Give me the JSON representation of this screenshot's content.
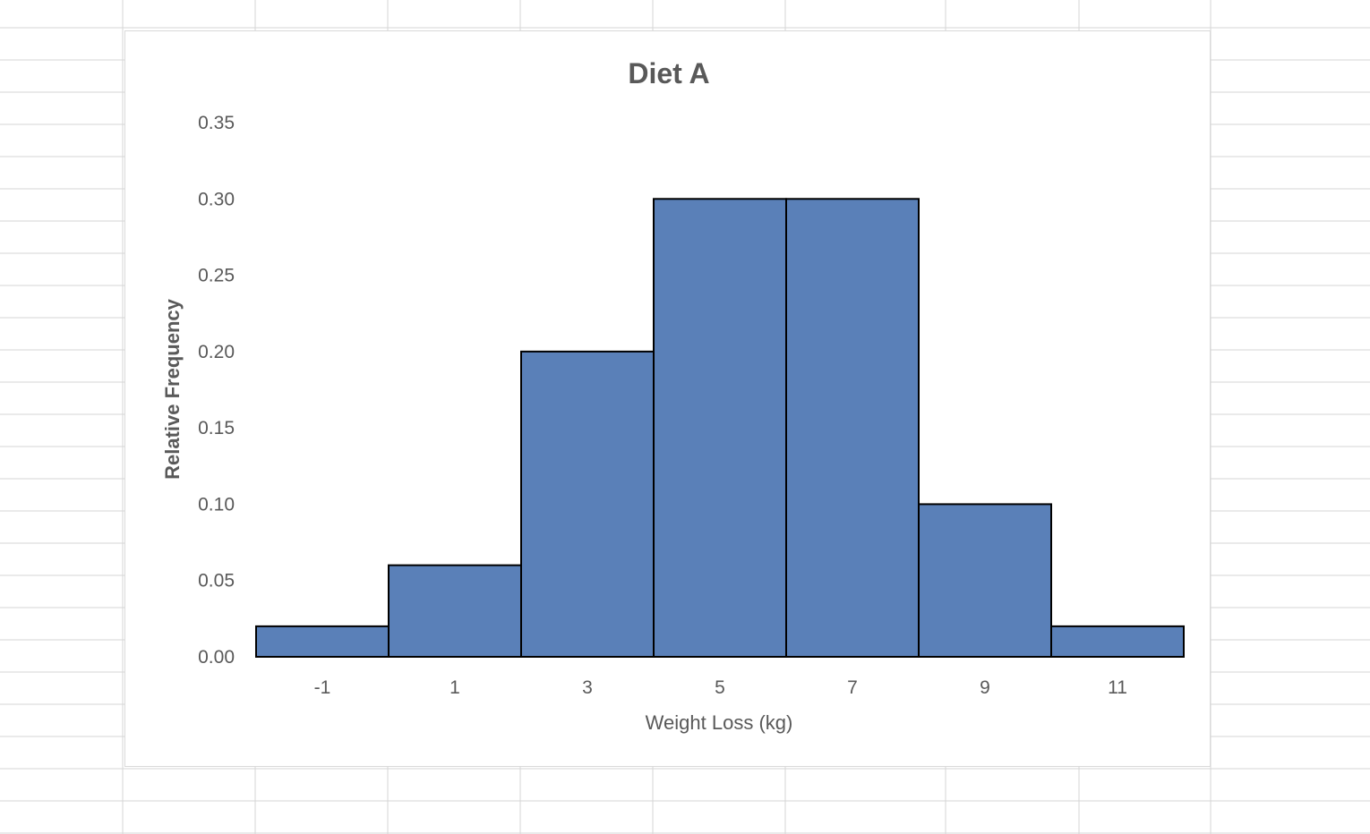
{
  "chart_data": {
    "type": "bar",
    "title": "Diet A",
    "xlabel": "Weight Loss (kg)",
    "ylabel": "Relative Frequency",
    "categories": [
      "-1",
      "1",
      "3",
      "5",
      "7",
      "9",
      "11"
    ],
    "values": [
      0.02,
      0.06,
      0.2,
      0.3,
      0.3,
      0.1,
      0.02
    ],
    "yticks": [
      "0.00",
      "0.05",
      "0.10",
      "0.15",
      "0.20",
      "0.25",
      "0.30",
      "0.35"
    ],
    "ylim": [
      0,
      0.35
    ],
    "grid": false,
    "legend": "none",
    "bar_color": "#5a80b8",
    "bar_edge_color": "#000000",
    "text_color": "#595959"
  }
}
